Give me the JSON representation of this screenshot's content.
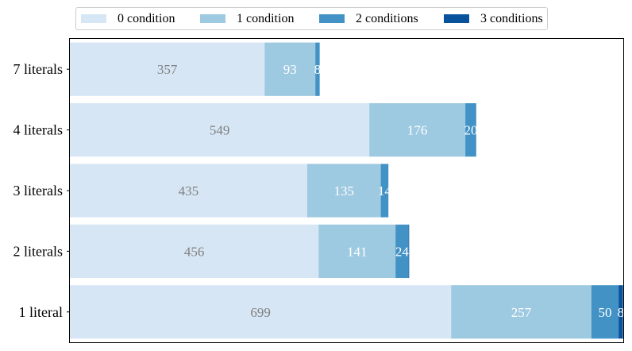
{
  "chart_data": {
    "type": "bar",
    "orientation": "horizontal",
    "stacked": true,
    "categories": [
      "7 literals",
      "4 literals",
      "3 literals",
      "2 literals",
      "1 literal"
    ],
    "series": [
      {
        "name": "0 condition",
        "values": [
          357,
          549,
          435,
          456,
          699
        ],
        "color": "#d6e6f4"
      },
      {
        "name": "1 condition",
        "values": [
          93,
          176,
          135,
          141,
          257
        ],
        "color": "#9dc9e1"
      },
      {
        "name": "2 conditions",
        "values": [
          8,
          20,
          14,
          24,
          50
        ],
        "color": "#4292c6"
      },
      {
        "name": "3 conditions",
        "values": [
          0,
          0,
          0,
          1,
          8
        ],
        "color": "#08519c"
      }
    ],
    "data_labels": [
      [
        "357",
        "549",
        "435",
        "456",
        "699"
      ],
      [
        "93",
        "176",
        "135",
        "141",
        "257"
      ],
      [
        "8",
        "20",
        "14",
        "24",
        "50"
      ],
      [
        "",
        "",
        "",
        "",
        "8"
      ]
    ],
    "label_colors": [
      "#808080",
      "#ffffff",
      "#ffffff",
      "#ffffff"
    ],
    "xlim": [
      0,
      1016
    ],
    "legend_position": "top-center",
    "grid": false,
    "title": "",
    "xlabel": "",
    "ylabel": ""
  }
}
